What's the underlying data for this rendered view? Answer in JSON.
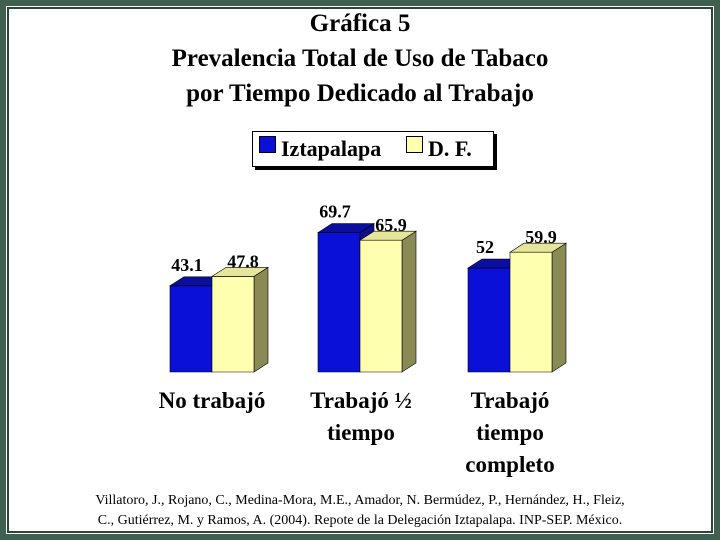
{
  "title_lines": [
    "Gráfica 5",
    "Prevalencia Total de Uso de Tabaco",
    "por Tiempo Dedicado al Trabajo"
  ],
  "source_lines": [
    "Villatoro, J., Rojano, C., Medina-Mora, M.E., Amador, N. Bermúdez, P., Hernández, H., Fleiz,",
    "C., Gutiérrez, M. y Ramos, A. (2004). Repote de la Delegación Iztapalapa. INP-SEP. México."
  ],
  "colors": {
    "iztapalapa": "#0a10d8",
    "iztapalapa_top": "#0a0f9e",
    "iztapalapa_side": "#0b0f8c",
    "df": "#ffffb0",
    "df_top": "#e6e69a",
    "df_side": "#8a8a55",
    "frame": "#3f5f4f"
  },
  "chart_data": {
    "type": "bar",
    "title": "Gráfica 5 Prevalencia Total de Uso de Tabaco por Tiempo Dedicado al Trabajo",
    "categories": [
      "No trabajó",
      "Trabajó ½ tiempo",
      "Trabajó tiempo completo"
    ],
    "series": [
      {
        "name": "Iztapalapa",
        "values": [
          43.1,
          69.7,
          52
        ],
        "labels": [
          "43.1",
          "69.7",
          "52"
        ]
      },
      {
        "name": "D. F.",
        "values": [
          47.8,
          65.9,
          59.9
        ],
        "labels": [
          "47.8",
          "65.9",
          "59.9"
        ]
      }
    ],
    "ylim": [
      0,
      80
    ],
    "grid": false,
    "legend_position": "top"
  }
}
